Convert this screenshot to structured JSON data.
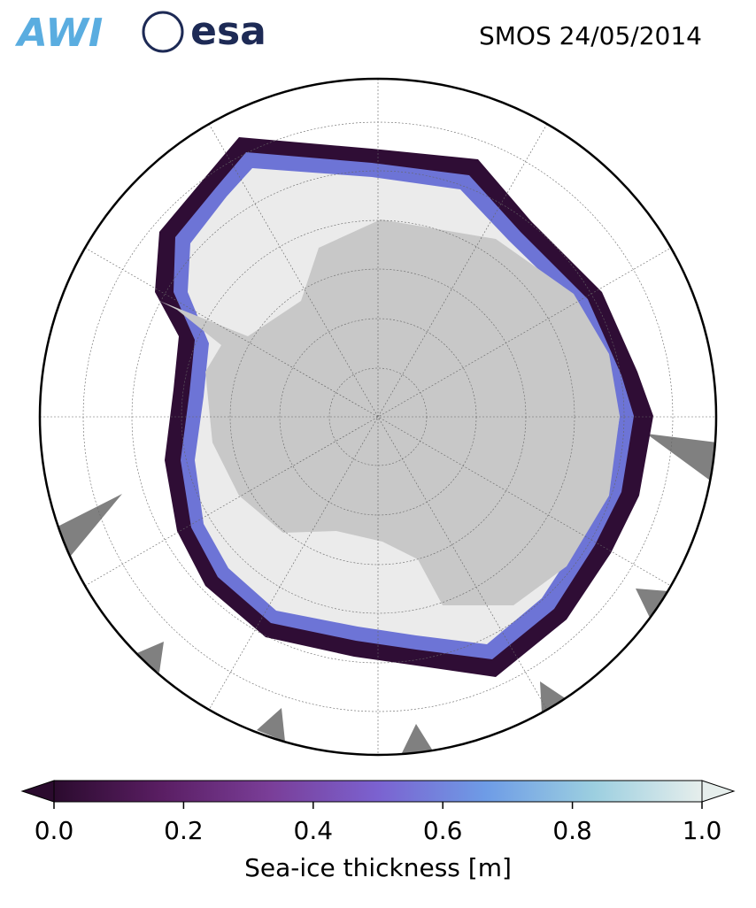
{
  "header": {
    "logos": [
      "AWI",
      "esa"
    ],
    "title": "SMOS 24/05/2014"
  },
  "colorbar": {
    "label": "Sea-ice thickness [m]",
    "lim": [
      0,
      1
    ],
    "ticks": [
      {
        "value": 0,
        "label": "0.0"
      },
      0.2,
      0.4,
      0.6,
      0.8,
      {
        "value": 1,
        "label": "1.0"
      }
    ],
    "colormap": [
      "#2b0b2e",
      "#5a1e63",
      "#7a3e98",
      "#7b62d0",
      "#6e9ce6",
      "#9ccfe0",
      "#e6eeec"
    ]
  }
}
